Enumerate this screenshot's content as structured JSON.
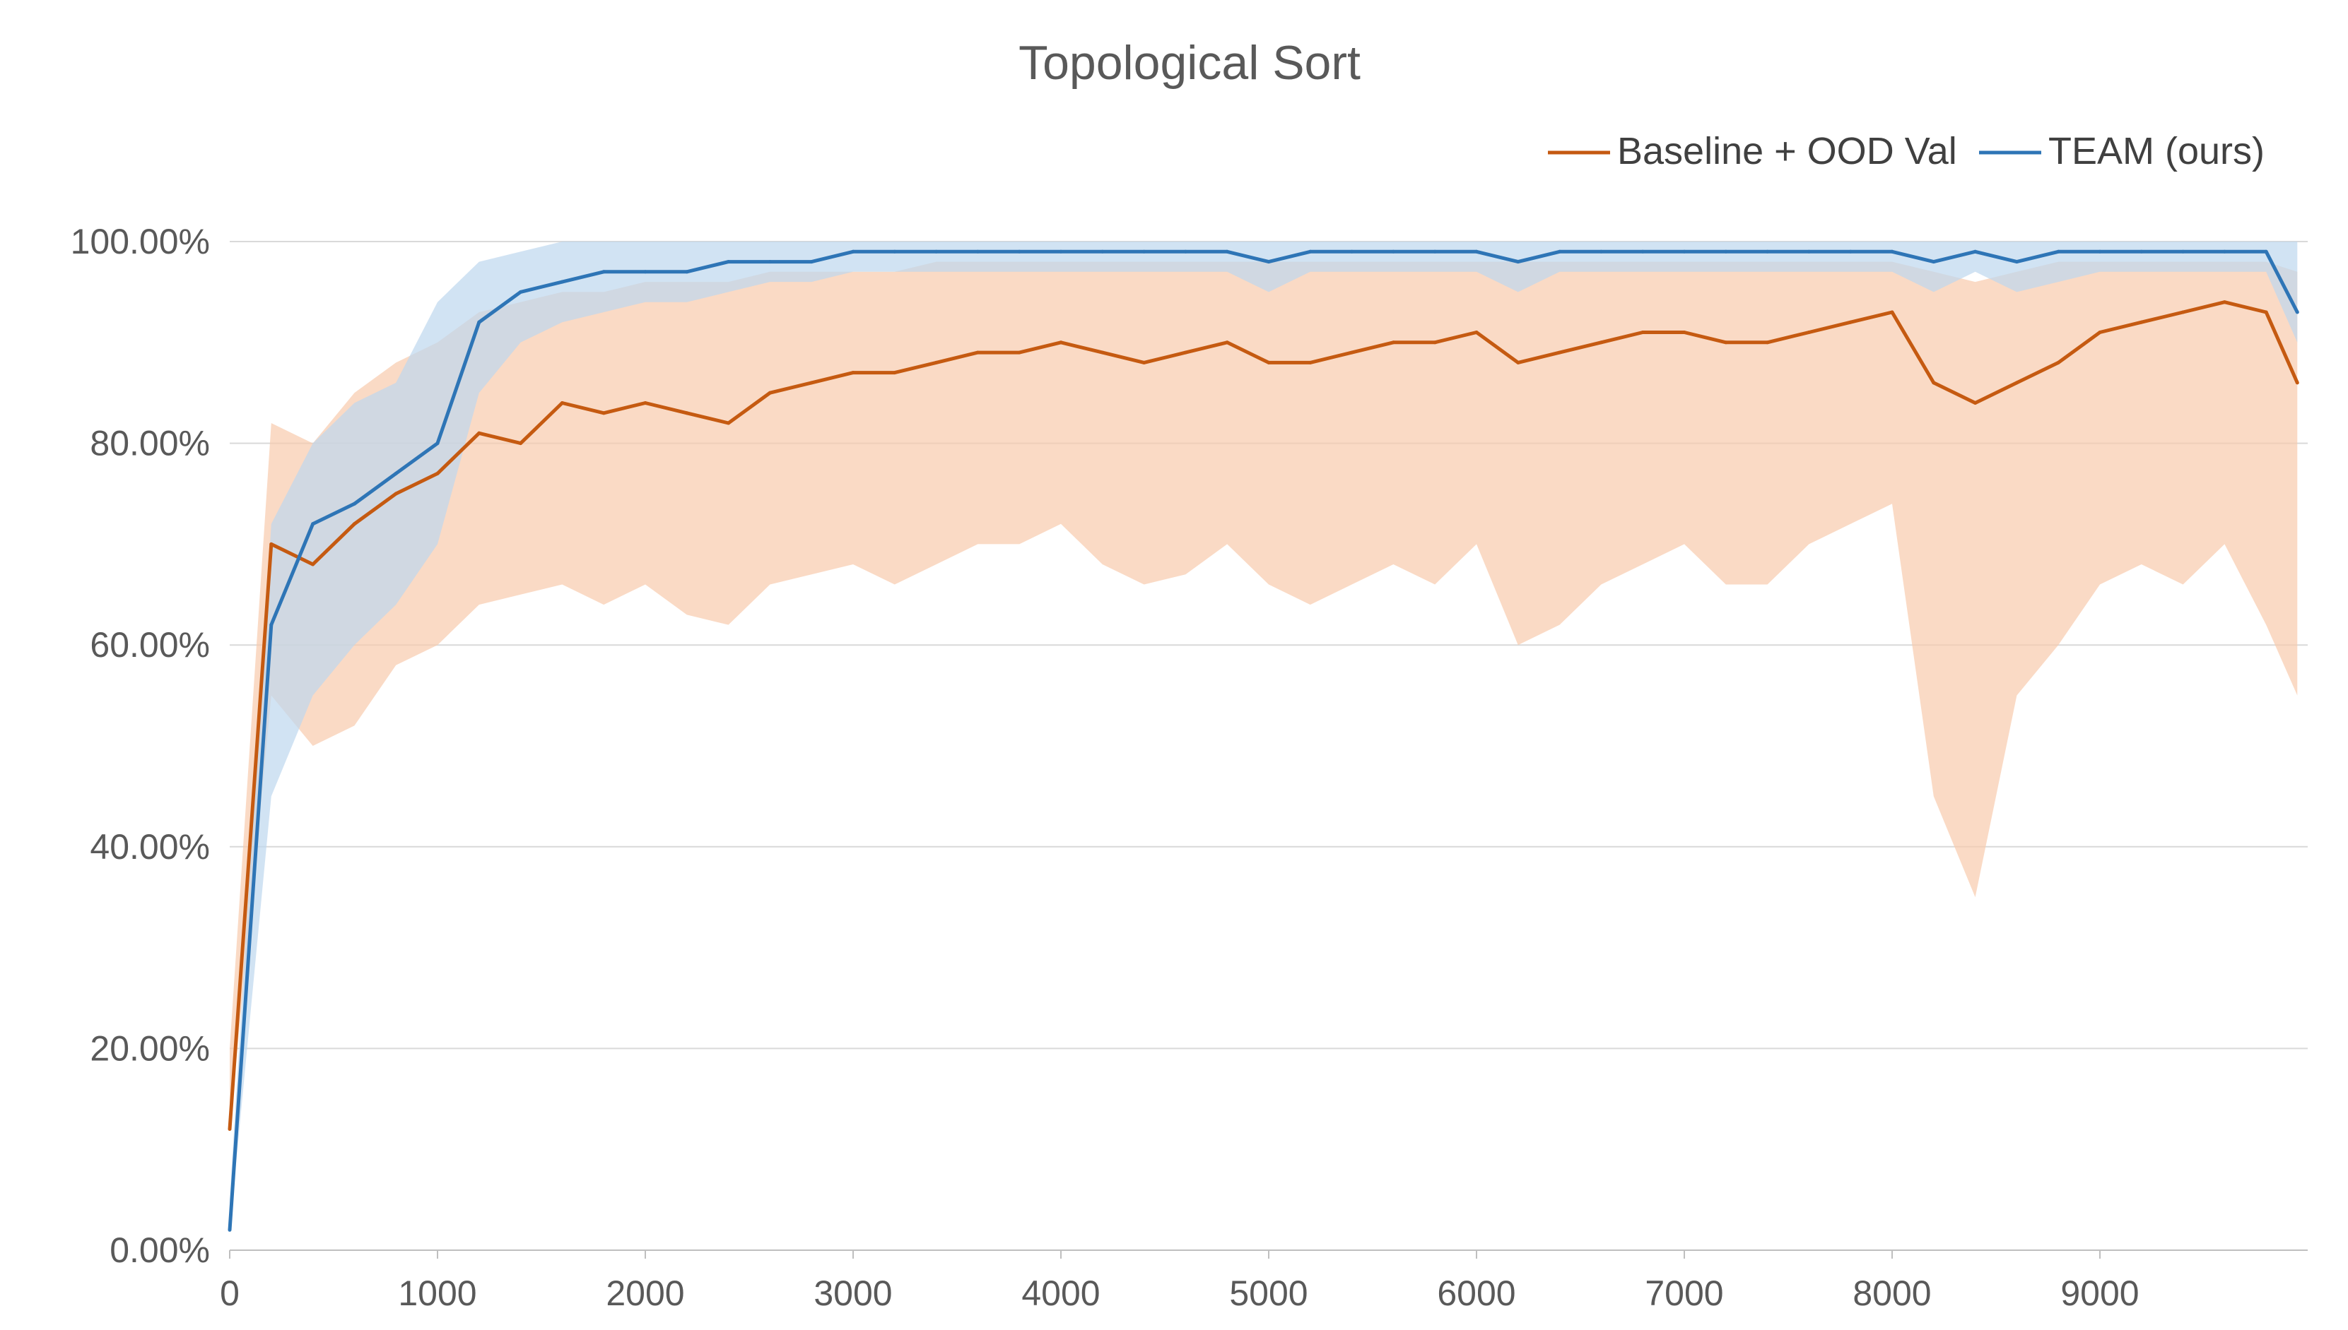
{
  "chart_data": {
    "type": "line",
    "title": "Topological Sort",
    "xlabel": "",
    "ylabel": "",
    "xlim": [
      0,
      10000
    ],
    "ylim": [
      0,
      1
    ],
    "x_ticks": [
      "0",
      "1000",
      "2000",
      "3000",
      "4000",
      "5000",
      "6000",
      "7000",
      "8000",
      "9000"
    ],
    "y_ticks": [
      "0.00%",
      "20.00%",
      "40.00%",
      "60.00%",
      "80.00%",
      "100.00%"
    ],
    "grid": true,
    "legend_position": "top-right",
    "series": [
      {
        "name": "Baseline + OOD Val",
        "color": "#c55a11",
        "band_color": "#f8cbad",
        "x": [
          0,
          200,
          400,
          600,
          800,
          1000,
          1200,
          1400,
          1600,
          1800,
          2000,
          2200,
          2400,
          2600,
          2800,
          3000,
          3200,
          3400,
          3600,
          3800,
          4000,
          4200,
          4400,
          4600,
          4800,
          5000,
          5200,
          5400,
          5600,
          5800,
          6000,
          6200,
          6400,
          6600,
          6800,
          7000,
          7200,
          7400,
          7600,
          7800,
          8000,
          8200,
          8400,
          8600,
          8800,
          9000,
          9200,
          9400,
          9600,
          9800,
          9950
        ],
        "values": [
          0.12,
          0.7,
          0.68,
          0.72,
          0.75,
          0.77,
          0.81,
          0.8,
          0.84,
          0.83,
          0.84,
          0.83,
          0.82,
          0.85,
          0.86,
          0.87,
          0.87,
          0.88,
          0.89,
          0.89,
          0.9,
          0.89,
          0.88,
          0.89,
          0.9,
          0.88,
          0.88,
          0.89,
          0.9,
          0.9,
          0.91,
          0.88,
          0.89,
          0.9,
          0.91,
          0.91,
          0.9,
          0.9,
          0.91,
          0.92,
          0.93,
          0.86,
          0.84,
          0.86,
          0.88,
          0.91,
          0.92,
          0.93,
          0.94,
          0.93,
          0.86
        ],
        "lower": [
          0.12,
          0.55,
          0.5,
          0.52,
          0.58,
          0.6,
          0.64,
          0.65,
          0.66,
          0.64,
          0.66,
          0.63,
          0.62,
          0.66,
          0.67,
          0.68,
          0.66,
          0.68,
          0.7,
          0.7,
          0.72,
          0.68,
          0.66,
          0.67,
          0.7,
          0.66,
          0.64,
          0.66,
          0.68,
          0.66,
          0.7,
          0.6,
          0.62,
          0.66,
          0.68,
          0.7,
          0.66,
          0.66,
          0.7,
          0.72,
          0.74,
          0.45,
          0.35,
          0.55,
          0.6,
          0.66,
          0.68,
          0.66,
          0.7,
          0.62,
          0.55
        ],
        "upper": [
          0.2,
          0.82,
          0.8,
          0.85,
          0.88,
          0.9,
          0.93,
          0.94,
          0.95,
          0.95,
          0.96,
          0.96,
          0.96,
          0.97,
          0.97,
          0.97,
          0.97,
          0.98,
          0.98,
          0.98,
          0.98,
          0.98,
          0.98,
          0.98,
          0.98,
          0.98,
          0.98,
          0.98,
          0.98,
          0.98,
          0.98,
          0.98,
          0.98,
          0.98,
          0.98,
          0.98,
          0.98,
          0.98,
          0.98,
          0.98,
          0.98,
          0.97,
          0.96,
          0.97,
          0.98,
          0.98,
          0.98,
          0.98,
          0.98,
          0.98,
          0.97
        ]
      },
      {
        "name": "TEAM (ours)",
        "color": "#2e75b6",
        "band_color": "#bdd7ee",
        "x": [
          0,
          200,
          400,
          600,
          800,
          1000,
          1200,
          1400,
          1600,
          1800,
          2000,
          2200,
          2400,
          2600,
          2800,
          3000,
          3200,
          3400,
          3600,
          3800,
          4000,
          4200,
          4400,
          4600,
          4800,
          5000,
          5200,
          5400,
          5600,
          5800,
          6000,
          6200,
          6400,
          6600,
          6800,
          7000,
          7200,
          7400,
          7600,
          7800,
          8000,
          8200,
          8400,
          8600,
          8800,
          9000,
          9200,
          9400,
          9600,
          9800,
          9950
        ],
        "values": [
          0.02,
          0.62,
          0.72,
          0.74,
          0.77,
          0.8,
          0.92,
          0.95,
          0.96,
          0.97,
          0.97,
          0.97,
          0.98,
          0.98,
          0.98,
          0.99,
          0.99,
          0.99,
          0.99,
          0.99,
          0.99,
          0.99,
          0.99,
          0.99,
          0.99,
          0.98,
          0.99,
          0.99,
          0.99,
          0.99,
          0.99,
          0.98,
          0.99,
          0.99,
          0.99,
          0.99,
          0.99,
          0.99,
          0.99,
          0.99,
          0.99,
          0.98,
          0.99,
          0.98,
          0.99,
          0.99,
          0.99,
          0.99,
          0.99,
          0.99,
          0.93
        ],
        "lower": [
          0.02,
          0.45,
          0.55,
          0.6,
          0.64,
          0.7,
          0.85,
          0.9,
          0.92,
          0.93,
          0.94,
          0.94,
          0.95,
          0.96,
          0.96,
          0.97,
          0.97,
          0.97,
          0.97,
          0.97,
          0.97,
          0.97,
          0.97,
          0.97,
          0.97,
          0.95,
          0.97,
          0.97,
          0.97,
          0.97,
          0.97,
          0.95,
          0.97,
          0.97,
          0.97,
          0.97,
          0.97,
          0.97,
          0.97,
          0.97,
          0.97,
          0.95,
          0.97,
          0.95,
          0.96,
          0.97,
          0.97,
          0.97,
          0.97,
          0.97,
          0.9
        ],
        "upper": [
          0.05,
          0.72,
          0.8,
          0.84,
          0.86,
          0.94,
          0.98,
          0.99,
          1.0,
          1.0,
          1.0,
          1.0,
          1.0,
          1.0,
          1.0,
          1.0,
          1.0,
          1.0,
          1.0,
          1.0,
          1.0,
          1.0,
          1.0,
          1.0,
          1.0,
          1.0,
          1.0,
          1.0,
          1.0,
          1.0,
          1.0,
          1.0,
          1.0,
          1.0,
          1.0,
          1.0,
          1.0,
          1.0,
          1.0,
          1.0,
          1.0,
          1.0,
          1.0,
          1.0,
          1.0,
          1.0,
          1.0,
          1.0,
          1.0,
          1.0,
          1.0
        ]
      }
    ]
  }
}
